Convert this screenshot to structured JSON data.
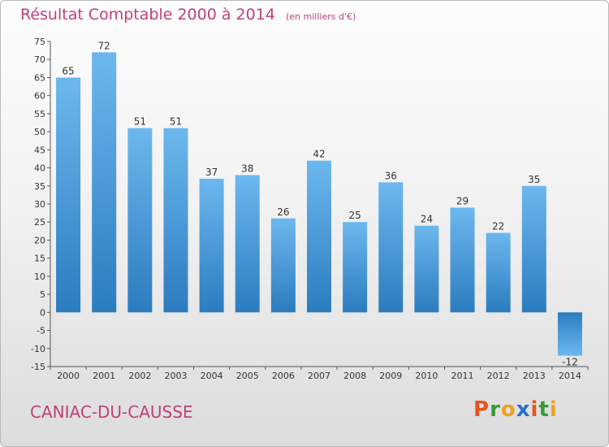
{
  "title": "Résultat Comptable 2000 à 2014",
  "subtitle": "(en milliers d'€)",
  "commune": "CANIAC-DU-CAUSSE",
  "logo": {
    "letters": [
      "P",
      "r",
      "o",
      "x",
      "i",
      "t",
      "i"
    ],
    "colors": [
      "#e8541f",
      "#3a9a3a",
      "#f0a020",
      "#2a6fc9",
      "#e8541f",
      "#3a9a3a",
      "#f0a020"
    ]
  },
  "colors": {
    "bar_top": "#6cb8ee",
    "bar_bottom": "#2b7cbf",
    "axis": "#555555",
    "title": "#c0407a"
  },
  "chart_data": {
    "type": "bar",
    "categories": [
      "2000",
      "2001",
      "2002",
      "2003",
      "2004",
      "2005",
      "2006",
      "2007",
      "2008",
      "2009",
      "2010",
      "2011",
      "2012",
      "2013",
      "2014"
    ],
    "values": [
      65,
      72,
      51,
      51,
      37,
      38,
      26,
      42,
      25,
      36,
      24,
      29,
      22,
      35,
      -12
    ],
    "ylim": [
      -15,
      75
    ],
    "yticks": [
      75,
      70,
      65,
      60,
      55,
      50,
      45,
      40,
      35,
      30,
      25,
      20,
      15,
      10,
      5,
      0,
      -5,
      -10,
      -15
    ],
    "title": "Résultat Comptable 2000 à 2014",
    "xlabel": "",
    "ylabel": "",
    "grid": false,
    "legend": "none"
  }
}
